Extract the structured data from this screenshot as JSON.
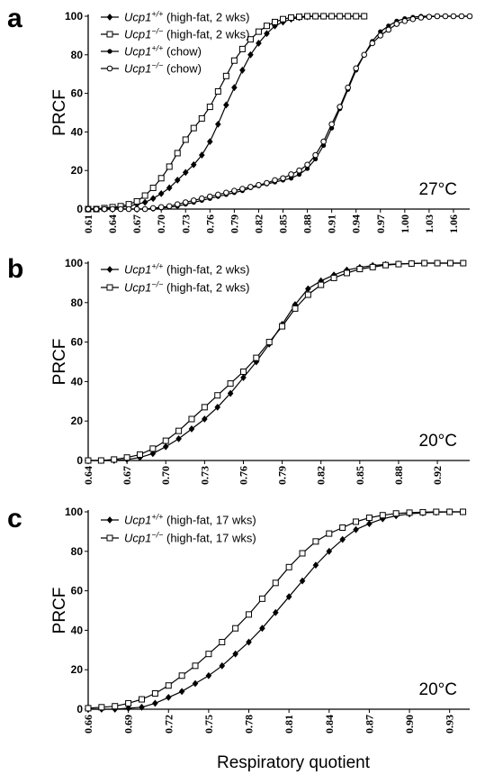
{
  "figure": {
    "xlabel": "Respiratory quotient"
  },
  "chart_data": [
    {
      "type": "line",
      "panel": "a",
      "temperature": "27°C",
      "ylabel": "PRCF",
      "xlim": [
        0.61,
        1.08
      ],
      "ylim": [
        0,
        100
      ],
      "xticks": [
        "0.61",
        "0.64",
        "0.67",
        "0.70",
        "0.73",
        "0.76",
        "0.79",
        "0.82",
        "0.85",
        "0.88",
        "0.91",
        "0.94",
        "0.97",
        "1.00",
        "1.03",
        "1.06"
      ],
      "yticks": [
        "0",
        "20",
        "40",
        "60",
        "80",
        "100"
      ],
      "legend_placement": "top-left",
      "series": [
        {
          "gene": "Ucp1",
          "sup": "+/+",
          "cond": " (high-fat, 2 wks)",
          "marker": "diamond-filled",
          "x": [
            0.61,
            0.62,
            0.63,
            0.64,
            0.65,
            0.66,
            0.67,
            0.68,
            0.69,
            0.7,
            0.71,
            0.72,
            0.73,
            0.74,
            0.75,
            0.76,
            0.77,
            0.78,
            0.79,
            0.8,
            0.81,
            0.82,
            0.83,
            0.84,
            0.85,
            0.86,
            0.87,
            0.88,
            0.89,
            0.9,
            0.91,
            0.92,
            0.93,
            0.94,
            0.95
          ],
          "y": [
            0,
            0,
            0,
            0.5,
            1,
            1.5,
            2.5,
            3.5,
            5.5,
            8,
            11,
            15,
            19,
            23,
            28,
            35,
            44,
            54,
            63,
            72,
            80,
            86,
            91,
            95,
            97,
            98.5,
            99.3,
            99.7,
            100,
            100,
            100,
            100,
            100,
            100,
            100
          ]
        },
        {
          "gene": "Ucp1",
          "sup": "−/−",
          "cond": " (high-fat, 2 wks)",
          "marker": "square-open",
          "x": [
            0.61,
            0.62,
            0.63,
            0.64,
            0.65,
            0.66,
            0.67,
            0.68,
            0.69,
            0.7,
            0.71,
            0.72,
            0.73,
            0.74,
            0.75,
            0.76,
            0.77,
            0.78,
            0.79,
            0.8,
            0.81,
            0.82,
            0.83,
            0.84,
            0.85,
            0.86,
            0.87,
            0.88,
            0.89,
            0.9,
            0.91,
            0.92,
            0.93,
            0.94,
            0.95
          ],
          "y": [
            0,
            0,
            0.5,
            1,
            1.5,
            2.5,
            4,
            7,
            11,
            16,
            22,
            29,
            36,
            42,
            47,
            53,
            61,
            69,
            77,
            83,
            88,
            92,
            95,
            97,
            98.5,
            99.3,
            99.7,
            100,
            100,
            100,
            100,
            100,
            100,
            100,
            100
          ]
        },
        {
          "gene": "Ucp1",
          "sup": "+/+",
          "cond": " (chow)",
          "marker": "circle-filled",
          "x": [
            0.61,
            0.62,
            0.63,
            0.64,
            0.65,
            0.66,
            0.67,
            0.68,
            0.69,
            0.7,
            0.71,
            0.72,
            0.73,
            0.74,
            0.75,
            0.76,
            0.77,
            0.78,
            0.79,
            0.8,
            0.81,
            0.82,
            0.83,
            0.84,
            0.85,
            0.86,
            0.87,
            0.88,
            0.89,
            0.9,
            0.91,
            0.92,
            0.93,
            0.94,
            0.95,
            0.96,
            0.97,
            0.98,
            0.99,
            1.0,
            1.01,
            1.02,
            1.03,
            1.04,
            1.05,
            1.06,
            1.07,
            1.08
          ],
          "y": [
            0,
            0,
            0,
            0,
            0,
            0,
            0,
            0,
            0,
            0.5,
            1,
            1.5,
            2.5,
            3.5,
            4.5,
            5.5,
            6.5,
            7.5,
            8.5,
            9.5,
            11,
            12,
            13,
            14,
            15,
            16,
            18,
            21,
            26,
            33,
            42,
            52,
            62,
            72,
            80,
            87,
            92,
            95,
            97.5,
            98.8,
            99.5,
            100,
            100,
            100,
            100,
            100,
            100,
            100
          ]
        },
        {
          "gene": "Ucp1",
          "sup": "−/−",
          "cond": " (chow)",
          "marker": "circle-open",
          "x": [
            0.61,
            0.62,
            0.63,
            0.64,
            0.65,
            0.66,
            0.67,
            0.68,
            0.69,
            0.7,
            0.71,
            0.72,
            0.73,
            0.74,
            0.75,
            0.76,
            0.77,
            0.78,
            0.79,
            0.8,
            0.81,
            0.82,
            0.83,
            0.84,
            0.85,
            0.86,
            0.87,
            0.88,
            0.89,
            0.9,
            0.91,
            0.92,
            0.93,
            0.94,
            0.95,
            0.96,
            0.97,
            0.98,
            0.99,
            1.0,
            1.01,
            1.02,
            1.03,
            1.04,
            1.05,
            1.06,
            1.07,
            1.08
          ],
          "y": [
            0,
            0,
            0,
            0,
            0,
            0,
            0,
            0,
            0.5,
            1,
            1.5,
            2.5,
            3.5,
            4.5,
            5.5,
            6.5,
            7.5,
            8.5,
            9.5,
            10.5,
            11.5,
            12.5,
            13.5,
            15,
            16,
            18,
            20,
            23,
            28,
            35,
            44,
            53,
            63,
            73,
            80,
            86,
            90,
            93,
            96,
            97.5,
            98.5,
            99.3,
            99.7,
            100,
            100,
            100,
            100,
            100
          ]
        }
      ]
    },
    {
      "type": "line",
      "panel": "b",
      "temperature": "20°C",
      "ylabel": "PRCF",
      "xlim": [
        0.64,
        0.935
      ],
      "ylim": [
        0,
        100
      ],
      "xticks": [
        "0.64",
        "0.67",
        "0.70",
        "0.73",
        "0.76",
        "0.79",
        "0.82",
        "0.85",
        "0.88",
        "0.92"
      ],
      "yticks": [
        "0",
        "20",
        "40",
        "60",
        "80",
        "100"
      ],
      "legend_placement": "top-left",
      "series": [
        {
          "gene": "Ucp1",
          "sup": "+/+",
          "cond": " (high-fat, 2 wks)",
          "marker": "diamond-filled",
          "x": [
            0.64,
            0.65,
            0.66,
            0.67,
            0.68,
            0.69,
            0.7,
            0.71,
            0.72,
            0.73,
            0.74,
            0.75,
            0.76,
            0.77,
            0.78,
            0.79,
            0.8,
            0.81,
            0.82,
            0.83,
            0.84,
            0.85,
            0.86,
            0.87,
            0.88,
            0.89,
            0.9,
            0.91,
            0.92,
            0.93
          ],
          "y": [
            0,
            0,
            0,
            0.5,
            1.5,
            3.5,
            7,
            11,
            16,
            21,
            27,
            34,
            42,
            50,
            59,
            69,
            79,
            87,
            91,
            94,
            96.5,
            97.8,
            98.8,
            99.3,
            99.6,
            99.8,
            100,
            100,
            100,
            100
          ]
        },
        {
          "gene": "Ucp1",
          "sup": "−/−",
          "cond": " (high-fat, 2 wks)",
          "marker": "square-open",
          "x": [
            0.64,
            0.65,
            0.66,
            0.67,
            0.68,
            0.69,
            0.7,
            0.71,
            0.72,
            0.73,
            0.74,
            0.75,
            0.76,
            0.77,
            0.78,
            0.79,
            0.8,
            0.81,
            0.82,
            0.83,
            0.84,
            0.85,
            0.86,
            0.87,
            0.88,
            0.89,
            0.9,
            0.91,
            0.92,
            0.93
          ],
          "y": [
            0,
            0,
            0.5,
            1.5,
            3,
            6,
            10,
            15,
            21,
            27,
            33,
            39,
            45,
            52,
            60,
            68,
            77,
            84,
            89,
            92.5,
            95,
            97,
            98,
            99,
            99.5,
            99.8,
            100,
            100,
            100,
            100
          ]
        }
      ]
    },
    {
      "type": "line",
      "panel": "c",
      "temperature": "20°C",
      "ylabel": "PRCF",
      "xlim": [
        0.66,
        0.945
      ],
      "ylim": [
        0,
        100
      ],
      "xticks": [
        "0.66",
        "0.69",
        "0.72",
        "0.75",
        "0.78",
        "0.81",
        "0.84",
        "0.87",
        "0.90",
        "0.93"
      ],
      "yticks": [
        "0",
        "20",
        "40",
        "60",
        "80",
        "100"
      ],
      "legend_placement": "top-left",
      "series": [
        {
          "gene": "Ucp1",
          "sup": "+/+",
          "cond": " (high-fat, 17 wks)",
          "marker": "diamond-filled",
          "x": [
            0.66,
            0.67,
            0.68,
            0.69,
            0.7,
            0.71,
            0.72,
            0.73,
            0.74,
            0.75,
            0.76,
            0.77,
            0.78,
            0.79,
            0.8,
            0.81,
            0.82,
            0.83,
            0.84,
            0.85,
            0.86,
            0.87,
            0.88,
            0.89,
            0.9,
            0.91,
            0.92,
            0.93,
            0.94
          ],
          "y": [
            0,
            0,
            0,
            0.5,
            1,
            3,
            6,
            9,
            13,
            17,
            22,
            28,
            34,
            41,
            49,
            57,
            65,
            73,
            80,
            86,
            91,
            94,
            96.5,
            98,
            99,
            99.5,
            99.8,
            100,
            100
          ]
        },
        {
          "gene": "Ucp1",
          "sup": "−/−",
          "cond": " (high-fat, 17 wks)",
          "marker": "square-open",
          "x": [
            0.66,
            0.67,
            0.68,
            0.69,
            0.7,
            0.71,
            0.72,
            0.73,
            0.74,
            0.75,
            0.76,
            0.77,
            0.78,
            0.79,
            0.8,
            0.81,
            0.82,
            0.83,
            0.84,
            0.85,
            0.86,
            0.87,
            0.88,
            0.89,
            0.9,
            0.91,
            0.92,
            0.93,
            0.94
          ],
          "y": [
            0.5,
            1,
            1.5,
            3,
            5,
            8,
            12,
            17,
            22,
            28,
            34,
            41,
            48,
            56,
            64,
            72,
            79,
            85,
            89,
            92,
            95,
            97,
            98.3,
            99.2,
            99.6,
            99.8,
            100,
            100,
            100
          ]
        }
      ]
    }
  ]
}
